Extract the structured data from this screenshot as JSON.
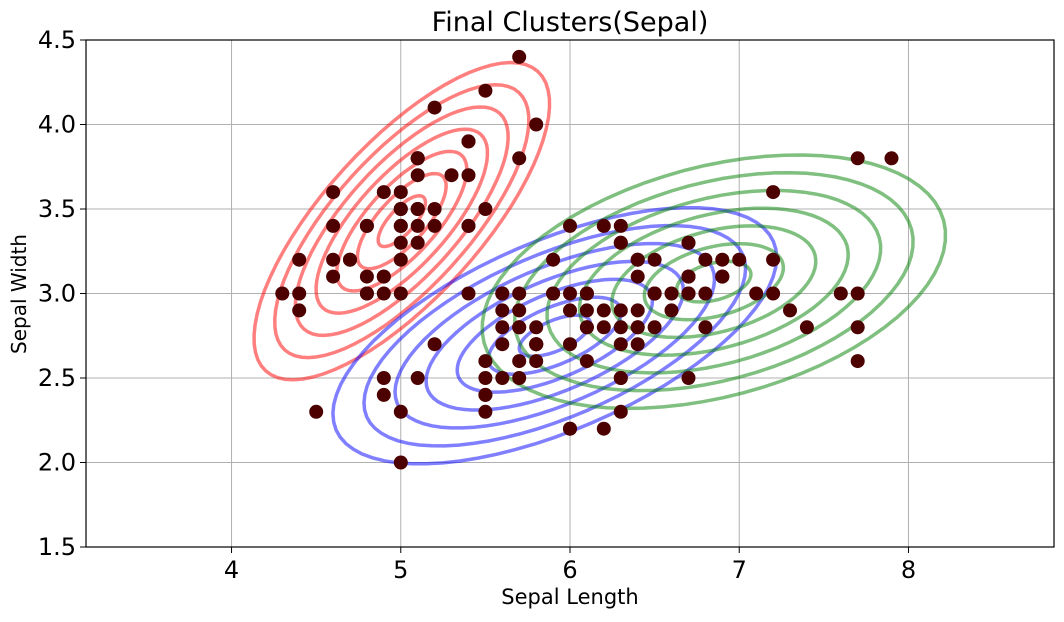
{
  "chart_data": {
    "type": "scatter",
    "title": "Final Clusters(Sepal)",
    "xlabel": "Sepal Length",
    "ylabel": "Sepal Width",
    "xlim": [
      3.14,
      8.86
    ],
    "ylim": [
      1.5,
      4.5
    ],
    "xticks": [
      4,
      5,
      6,
      7,
      8
    ],
    "yticks": [
      1.5,
      2.0,
      2.5,
      3.0,
      3.5,
      4.0,
      4.5
    ],
    "grid": true,
    "point_color": "#4d0000",
    "points": [
      [
        5.1,
        3.5
      ],
      [
        4.9,
        3.0
      ],
      [
        4.7,
        3.2
      ],
      [
        4.6,
        3.1
      ],
      [
        5.0,
        3.6
      ],
      [
        5.4,
        3.9
      ],
      [
        4.6,
        3.4
      ],
      [
        5.0,
        3.4
      ],
      [
        4.4,
        2.9
      ],
      [
        4.9,
        3.1
      ],
      [
        5.4,
        3.7
      ],
      [
        4.8,
        3.4
      ],
      [
        4.8,
        3.0
      ],
      [
        4.3,
        3.0
      ],
      [
        5.8,
        4.0
      ],
      [
        5.7,
        4.4
      ],
      [
        5.4,
        3.9
      ],
      [
        5.1,
        3.5
      ],
      [
        5.7,
        3.8
      ],
      [
        5.1,
        3.8
      ],
      [
        5.4,
        3.4
      ],
      [
        5.1,
        3.7
      ],
      [
        4.6,
        3.6
      ],
      [
        5.1,
        3.3
      ],
      [
        4.8,
        3.4
      ],
      [
        5.0,
        3.0
      ],
      [
        5.0,
        3.4
      ],
      [
        5.2,
        3.5
      ],
      [
        5.2,
        3.4
      ],
      [
        4.7,
        3.2
      ],
      [
        4.8,
        3.1
      ],
      [
        5.4,
        3.4
      ],
      [
        5.2,
        4.1
      ],
      [
        5.5,
        4.2
      ],
      [
        4.9,
        3.1
      ],
      [
        5.0,
        3.2
      ],
      [
        5.5,
        3.5
      ],
      [
        4.9,
        3.6
      ],
      [
        4.4,
        3.0
      ],
      [
        5.1,
        3.4
      ],
      [
        5.0,
        3.5
      ],
      [
        4.5,
        2.3
      ],
      [
        4.4,
        3.2
      ],
      [
        5.0,
        3.5
      ],
      [
        5.1,
        3.8
      ],
      [
        4.8,
        3.0
      ],
      [
        5.1,
        3.8
      ],
      [
        4.6,
        3.2
      ],
      [
        5.3,
        3.7
      ],
      [
        5.0,
        3.3
      ],
      [
        7.0,
        3.2
      ],
      [
        6.4,
        3.2
      ],
      [
        6.9,
        3.1
      ],
      [
        5.5,
        2.3
      ],
      [
        6.5,
        2.8
      ],
      [
        5.7,
        2.8
      ],
      [
        6.3,
        3.3
      ],
      [
        4.9,
        2.4
      ],
      [
        6.6,
        2.9
      ],
      [
        5.2,
        2.7
      ],
      [
        5.0,
        2.0
      ],
      [
        5.9,
        3.0
      ],
      [
        6.0,
        2.2
      ],
      [
        6.1,
        2.9
      ],
      [
        5.6,
        2.9
      ],
      [
        6.7,
        3.1
      ],
      [
        5.6,
        3.0
      ],
      [
        5.8,
        2.7
      ],
      [
        6.2,
        2.2
      ],
      [
        5.6,
        2.5
      ],
      [
        5.9,
        3.2
      ],
      [
        6.1,
        2.8
      ],
      [
        6.3,
        2.5
      ],
      [
        6.1,
        2.8
      ],
      [
        6.4,
        2.9
      ],
      [
        6.6,
        3.0
      ],
      [
        6.8,
        2.8
      ],
      [
        6.7,
        3.0
      ],
      [
        6.0,
        2.9
      ],
      [
        5.7,
        2.6
      ],
      [
        5.5,
        2.4
      ],
      [
        5.5,
        2.4
      ],
      [
        5.8,
        2.7
      ],
      [
        6.0,
        2.7
      ],
      [
        5.4,
        3.0
      ],
      [
        6.0,
        3.4
      ],
      [
        6.7,
        3.1
      ],
      [
        6.3,
        2.3
      ],
      [
        5.6,
        3.0
      ],
      [
        5.5,
        2.5
      ],
      [
        5.5,
        2.6
      ],
      [
        6.1,
        3.0
      ],
      [
        5.8,
        2.6
      ],
      [
        5.0,
        2.3
      ],
      [
        5.6,
        2.7
      ],
      [
        5.7,
        3.0
      ],
      [
        5.7,
        2.9
      ],
      [
        6.2,
        2.9
      ],
      [
        5.1,
        2.5
      ],
      [
        5.7,
        2.8
      ],
      [
        6.3,
        3.3
      ],
      [
        5.8,
        2.7
      ],
      [
        7.1,
        3.0
      ],
      [
        6.3,
        2.9
      ],
      [
        6.5,
        3.0
      ],
      [
        7.6,
        3.0
      ],
      [
        4.9,
        2.5
      ],
      [
        7.3,
        2.9
      ],
      [
        6.7,
        2.5
      ],
      [
        7.2,
        3.6
      ],
      [
        6.5,
        3.2
      ],
      [
        6.4,
        2.7
      ],
      [
        6.8,
        3.0
      ],
      [
        5.7,
        2.5
      ],
      [
        5.8,
        2.8
      ],
      [
        6.4,
        3.2
      ],
      [
        6.5,
        3.0
      ],
      [
        7.7,
        3.8
      ],
      [
        7.7,
        2.6
      ],
      [
        6.0,
        2.2
      ],
      [
        6.9,
        3.2
      ],
      [
        5.6,
        2.8
      ],
      [
        7.7,
        2.8
      ],
      [
        6.3,
        2.7
      ],
      [
        6.7,
        3.3
      ],
      [
        7.2,
        3.2
      ],
      [
        6.2,
        2.8
      ],
      [
        6.1,
        3.0
      ],
      [
        6.4,
        2.8
      ],
      [
        7.2,
        3.0
      ],
      [
        7.4,
        2.8
      ],
      [
        7.9,
        3.8
      ],
      [
        6.4,
        2.8
      ],
      [
        6.3,
        2.8
      ],
      [
        6.1,
        2.6
      ],
      [
        7.7,
        3.0
      ],
      [
        6.3,
        3.4
      ],
      [
        6.4,
        3.1
      ],
      [
        6.0,
        3.0
      ],
      [
        6.9,
        3.1
      ],
      [
        6.7,
        3.1
      ],
      [
        6.9,
        3.1
      ],
      [
        5.8,
        2.7
      ],
      [
        6.8,
        3.2
      ],
      [
        6.7,
        3.3
      ],
      [
        6.7,
        3.0
      ],
      [
        6.3,
        2.5
      ],
      [
        6.5,
        3.0
      ],
      [
        6.2,
        3.4
      ],
      [
        5.9,
        3.0
      ]
    ],
    "clusters": [
      {
        "color": "#ff0000",
        "mean": [
          5.006,
          3.428
        ],
        "cov": [
          [
            0.122,
            0.097
          ],
          [
            0.097,
            0.141
          ]
        ]
      },
      {
        "color": "#0000ff",
        "mean": [
          5.91,
          2.75
        ],
        "cov": [
          [
            0.275,
            0.097
          ],
          [
            0.097,
            0.092
          ]
        ]
      },
      {
        "color": "#008000",
        "mean": [
          6.85,
          3.07
        ],
        "cov": [
          [
            0.3,
            0.06
          ],
          [
            0.06,
            0.09
          ]
        ]
      }
    ]
  }
}
